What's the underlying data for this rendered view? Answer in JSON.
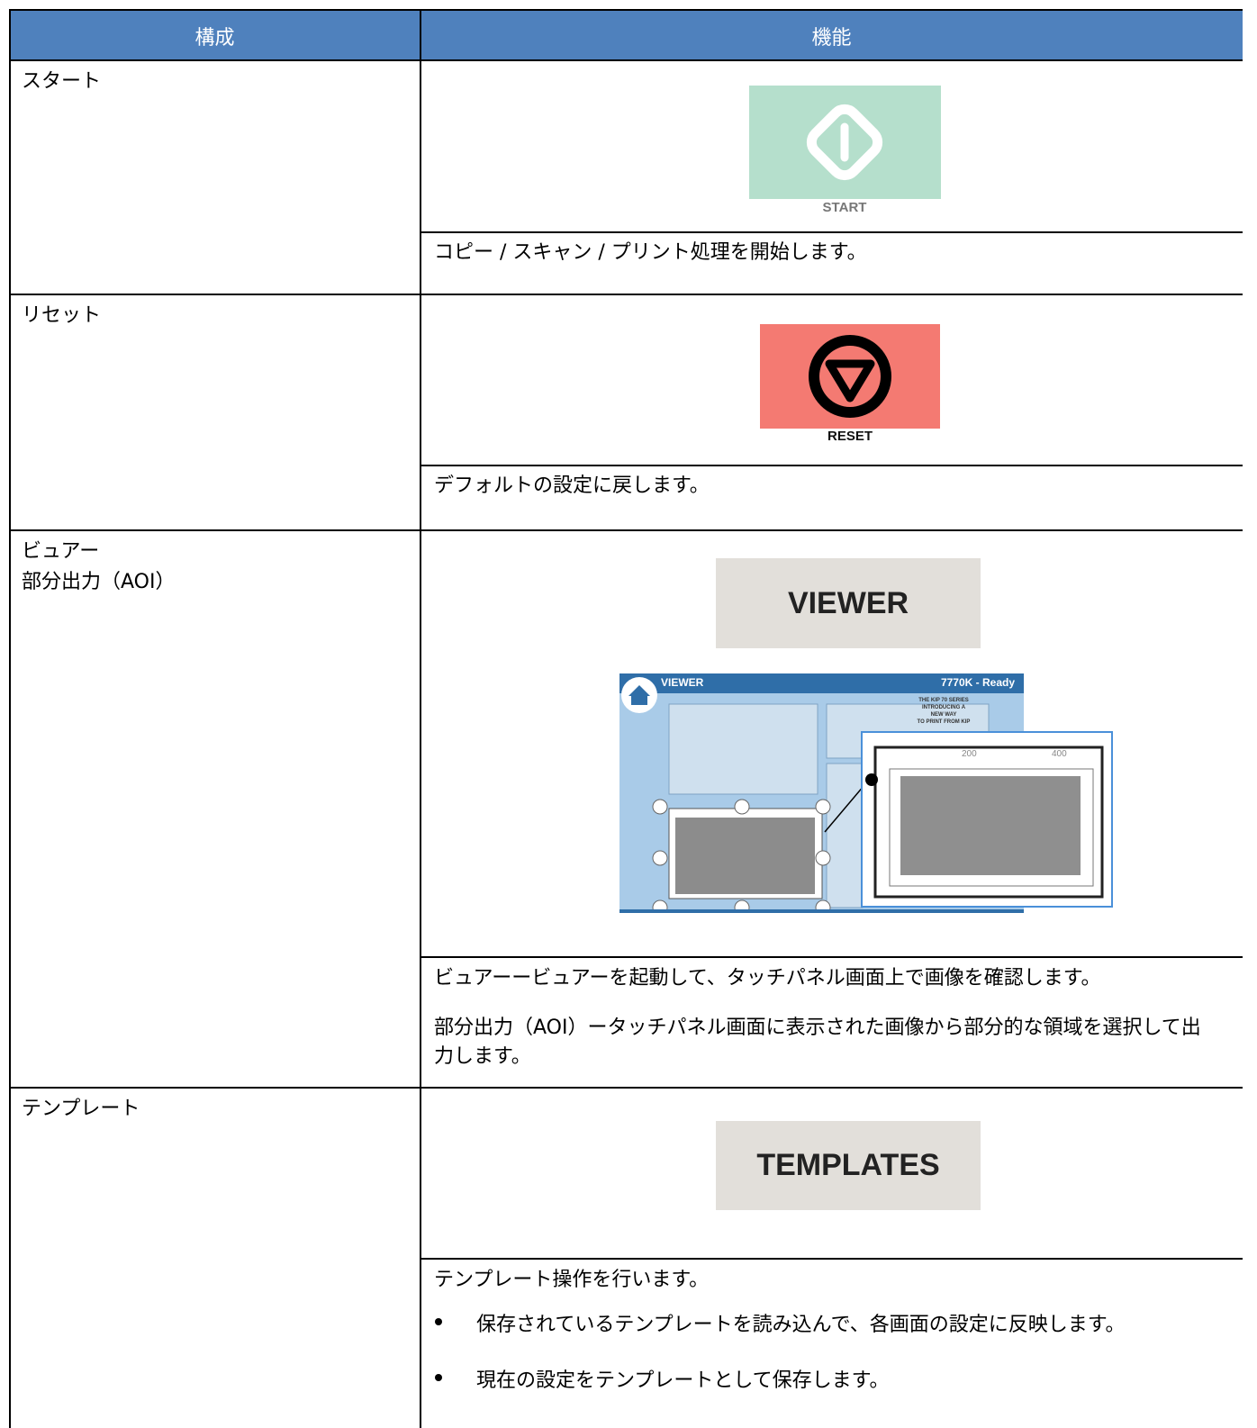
{
  "table": {
    "header": [
      "構成",
      "機能"
    ],
    "rows": [
      {
        "name": [
          "スタート"
        ],
        "button": "START",
        "description": [
          "コピー / スキャン / プリント処理を開始します。"
        ]
      },
      {
        "name": [
          "リセット"
        ],
        "button": "RESET",
        "description": [
          "デフォルトの設定に戻します。"
        ]
      },
      {
        "name": [
          "ビュアー",
          "部分出力（AOI）"
        ],
        "button": "VIEWER",
        "screen": {
          "title": "VIEWER",
          "status": "7770K - Ready",
          "banner": [
            "THE KIP 70 SERIES",
            "INTRODUCING A",
            "NEW WAY",
            "TO PRINT FROM KIP"
          ],
          "ruler": [
            200,
            400
          ]
        },
        "description": [
          "ビュアーービュアーを起動して、タッチパネル画面上で画像を確認します。",
          "部分出力（AOI）ータッチパネル画面に表示された画像から部分的な領域を選択して出力します。"
        ]
      },
      {
        "name": [
          "テンプレート"
        ],
        "button": "TEMPLATES",
        "description": [
          "テンプレート操作を行います。"
        ],
        "bullets": [
          "保存されているテンプレートを読み込んで、各画面の設定に反映します。",
          "現在の設定をテンプレートとして保存します。"
        ]
      }
    ]
  }
}
